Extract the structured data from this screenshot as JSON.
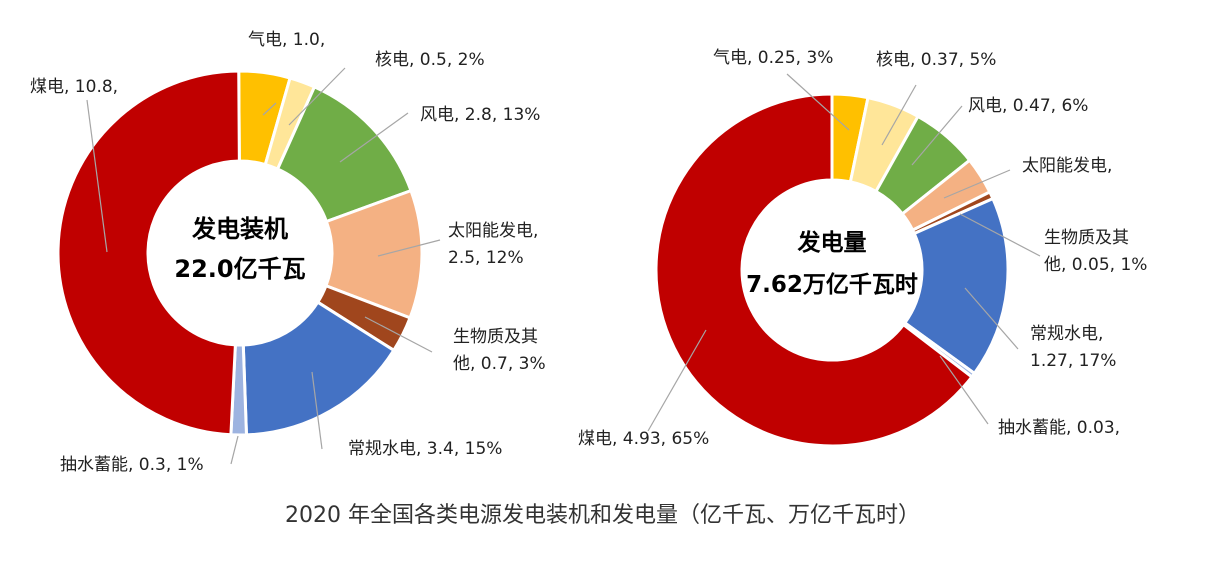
{
  "title": "2020 年全国各类电源发电装机和发电量（亿千瓦、万亿千瓦时）",
  "chart_data": [
    {
      "type": "pie",
      "style": "donut",
      "center_title": "发电装机",
      "center_value": "22.0亿千瓦",
      "categories": [
        "气电",
        "核电",
        "风电",
        "太阳能发电",
        "生物质及其他",
        "常规水电",
        "抽水蓄能",
        "煤电"
      ],
      "values": [
        1.0,
        0.5,
        2.8,
        2.5,
        0.7,
        3.4,
        0.3,
        10.8
      ],
      "percents": [
        null,
        2,
        13,
        12,
        3,
        15,
        1,
        null
      ],
      "colors": [
        "#FFC000",
        "#FFE699",
        "#70AD47",
        "#F4B183",
        "#A0461D",
        "#4472C4",
        "#9DB3E0",
        "#C00000"
      ],
      "labels": [
        {
          "lines": [
            "气电, 1.0,"
          ]
        },
        {
          "lines": [
            "核电, 0.5, 2%"
          ]
        },
        {
          "lines": [
            "风电, 2.8, 13%"
          ]
        },
        {
          "lines": [
            "太阳能发电,",
            "2.5, 12%"
          ]
        },
        {
          "lines": [
            "生物质及其",
            "他, 0.7, 3%"
          ]
        },
        {
          "lines": [
            "常规水电, 3.4, 15%"
          ]
        },
        {
          "lines": [
            "抽水蓄能, 0.3, 1%"
          ]
        },
        {
          "lines": [
            "煤电, 10.8,"
          ]
        }
      ]
    },
    {
      "type": "pie",
      "style": "donut",
      "center_title": "发电量",
      "center_value": "7.62万亿千瓦时",
      "categories": [
        "气电",
        "核电",
        "风电",
        "太阳能发电",
        "生物质及其他",
        "常规水电",
        "抽水蓄能",
        "煤电"
      ],
      "values": [
        0.25,
        0.37,
        0.47,
        0.26,
        0.05,
        1.27,
        0.03,
        4.93
      ],
      "percents": [
        3,
        5,
        6,
        null,
        1,
        17,
        null,
        65
      ],
      "colors": [
        "#FFC000",
        "#FFE699",
        "#70AD47",
        "#F4B183",
        "#A0461D",
        "#4472C4",
        "#9DB3E0",
        "#C00000"
      ],
      "labels": [
        {
          "lines": [
            "气电, 0.25, 3%"
          ]
        },
        {
          "lines": [
            "核电, 0.37, 5%"
          ]
        },
        {
          "lines": [
            "风电, 0.47, 6%"
          ]
        },
        {
          "lines": [
            "太阳能发电,"
          ]
        },
        {
          "lines": [
            "生物质及其",
            "他, 0.05, 1%"
          ]
        },
        {
          "lines": [
            "常规水电,",
            "1.27, 17%"
          ]
        },
        {
          "lines": [
            "抽水蓄能, 0.03,"
          ]
        },
        {
          "lines": [
            "煤电, 4.93, 65%"
          ]
        }
      ]
    }
  ]
}
